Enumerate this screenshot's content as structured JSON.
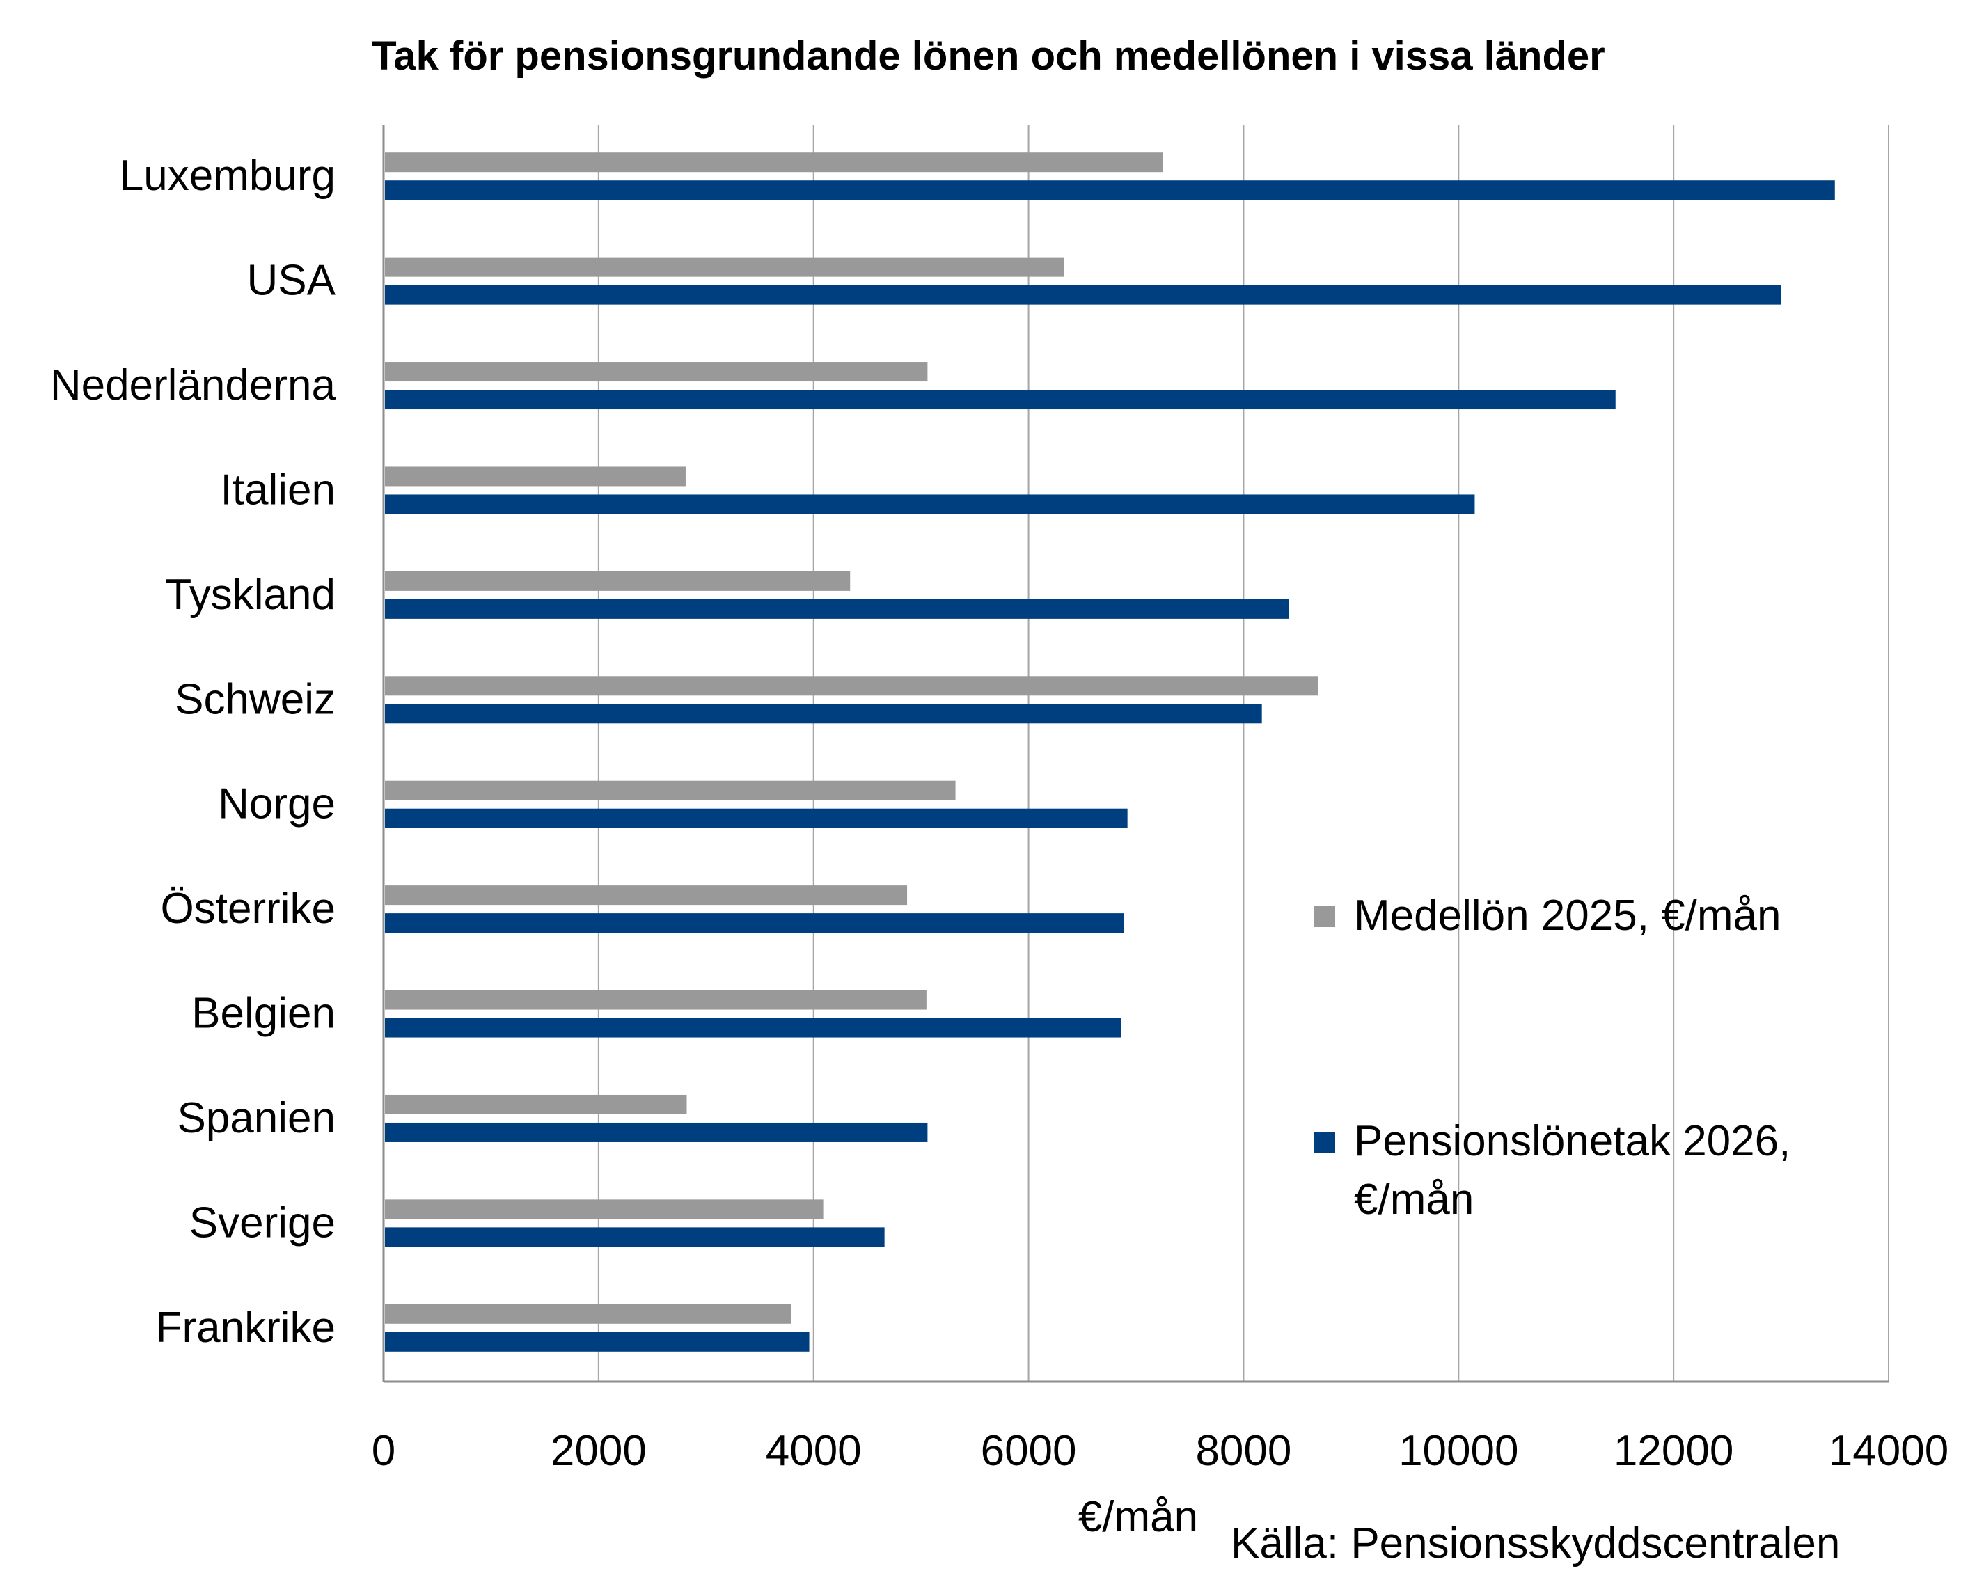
{
  "chart_data": {
    "type": "bar",
    "orientation": "horizontal",
    "title": "Tak för pensionsgrundande lönen och medellönen i vissa länder",
    "xlabel": "€/mån",
    "source": "Källa: Pensionsskyddscentralen",
    "categories": [
      "Luxemburg",
      "USA",
      "Nederländerna",
      "Italien",
      "Tyskland",
      "Schweiz",
      "Norge",
      "Österrike",
      "Belgien",
      "Spanien",
      "Sverige",
      "Frankrike"
    ],
    "series": [
      {
        "name": "Medellön 2025, €/mån",
        "legend_lines": [
          "Medellön 2025, €/mån"
        ],
        "color": "#999999",
        "values": [
          7250,
          6330,
          5060,
          2810,
          4340,
          8690,
          5320,
          4870,
          5050,
          2820,
          4090,
          3790
        ]
      },
      {
        "name": "Pensionslönetak 2026, €/mån",
        "legend_lines": [
          "Pensionslönetak 2026,",
          "€/mån"
        ],
        "color": "#003f7f",
        "values": [
          13500,
          13000,
          11460,
          10150,
          8420,
          8170,
          6920,
          6890,
          6860,
          5060,
          4660,
          3960
        ]
      }
    ],
    "xlim": [
      0,
      14000
    ],
    "xticks": [
      0,
      2000,
      4000,
      6000,
      8000,
      10000,
      12000,
      14000
    ],
    "xtick_labels": [
      "0",
      "2000",
      "4000",
      "6000",
      "8000",
      "10000",
      "12000",
      "14000"
    ],
    "grid": "vertical",
    "legend_position": "right"
  }
}
